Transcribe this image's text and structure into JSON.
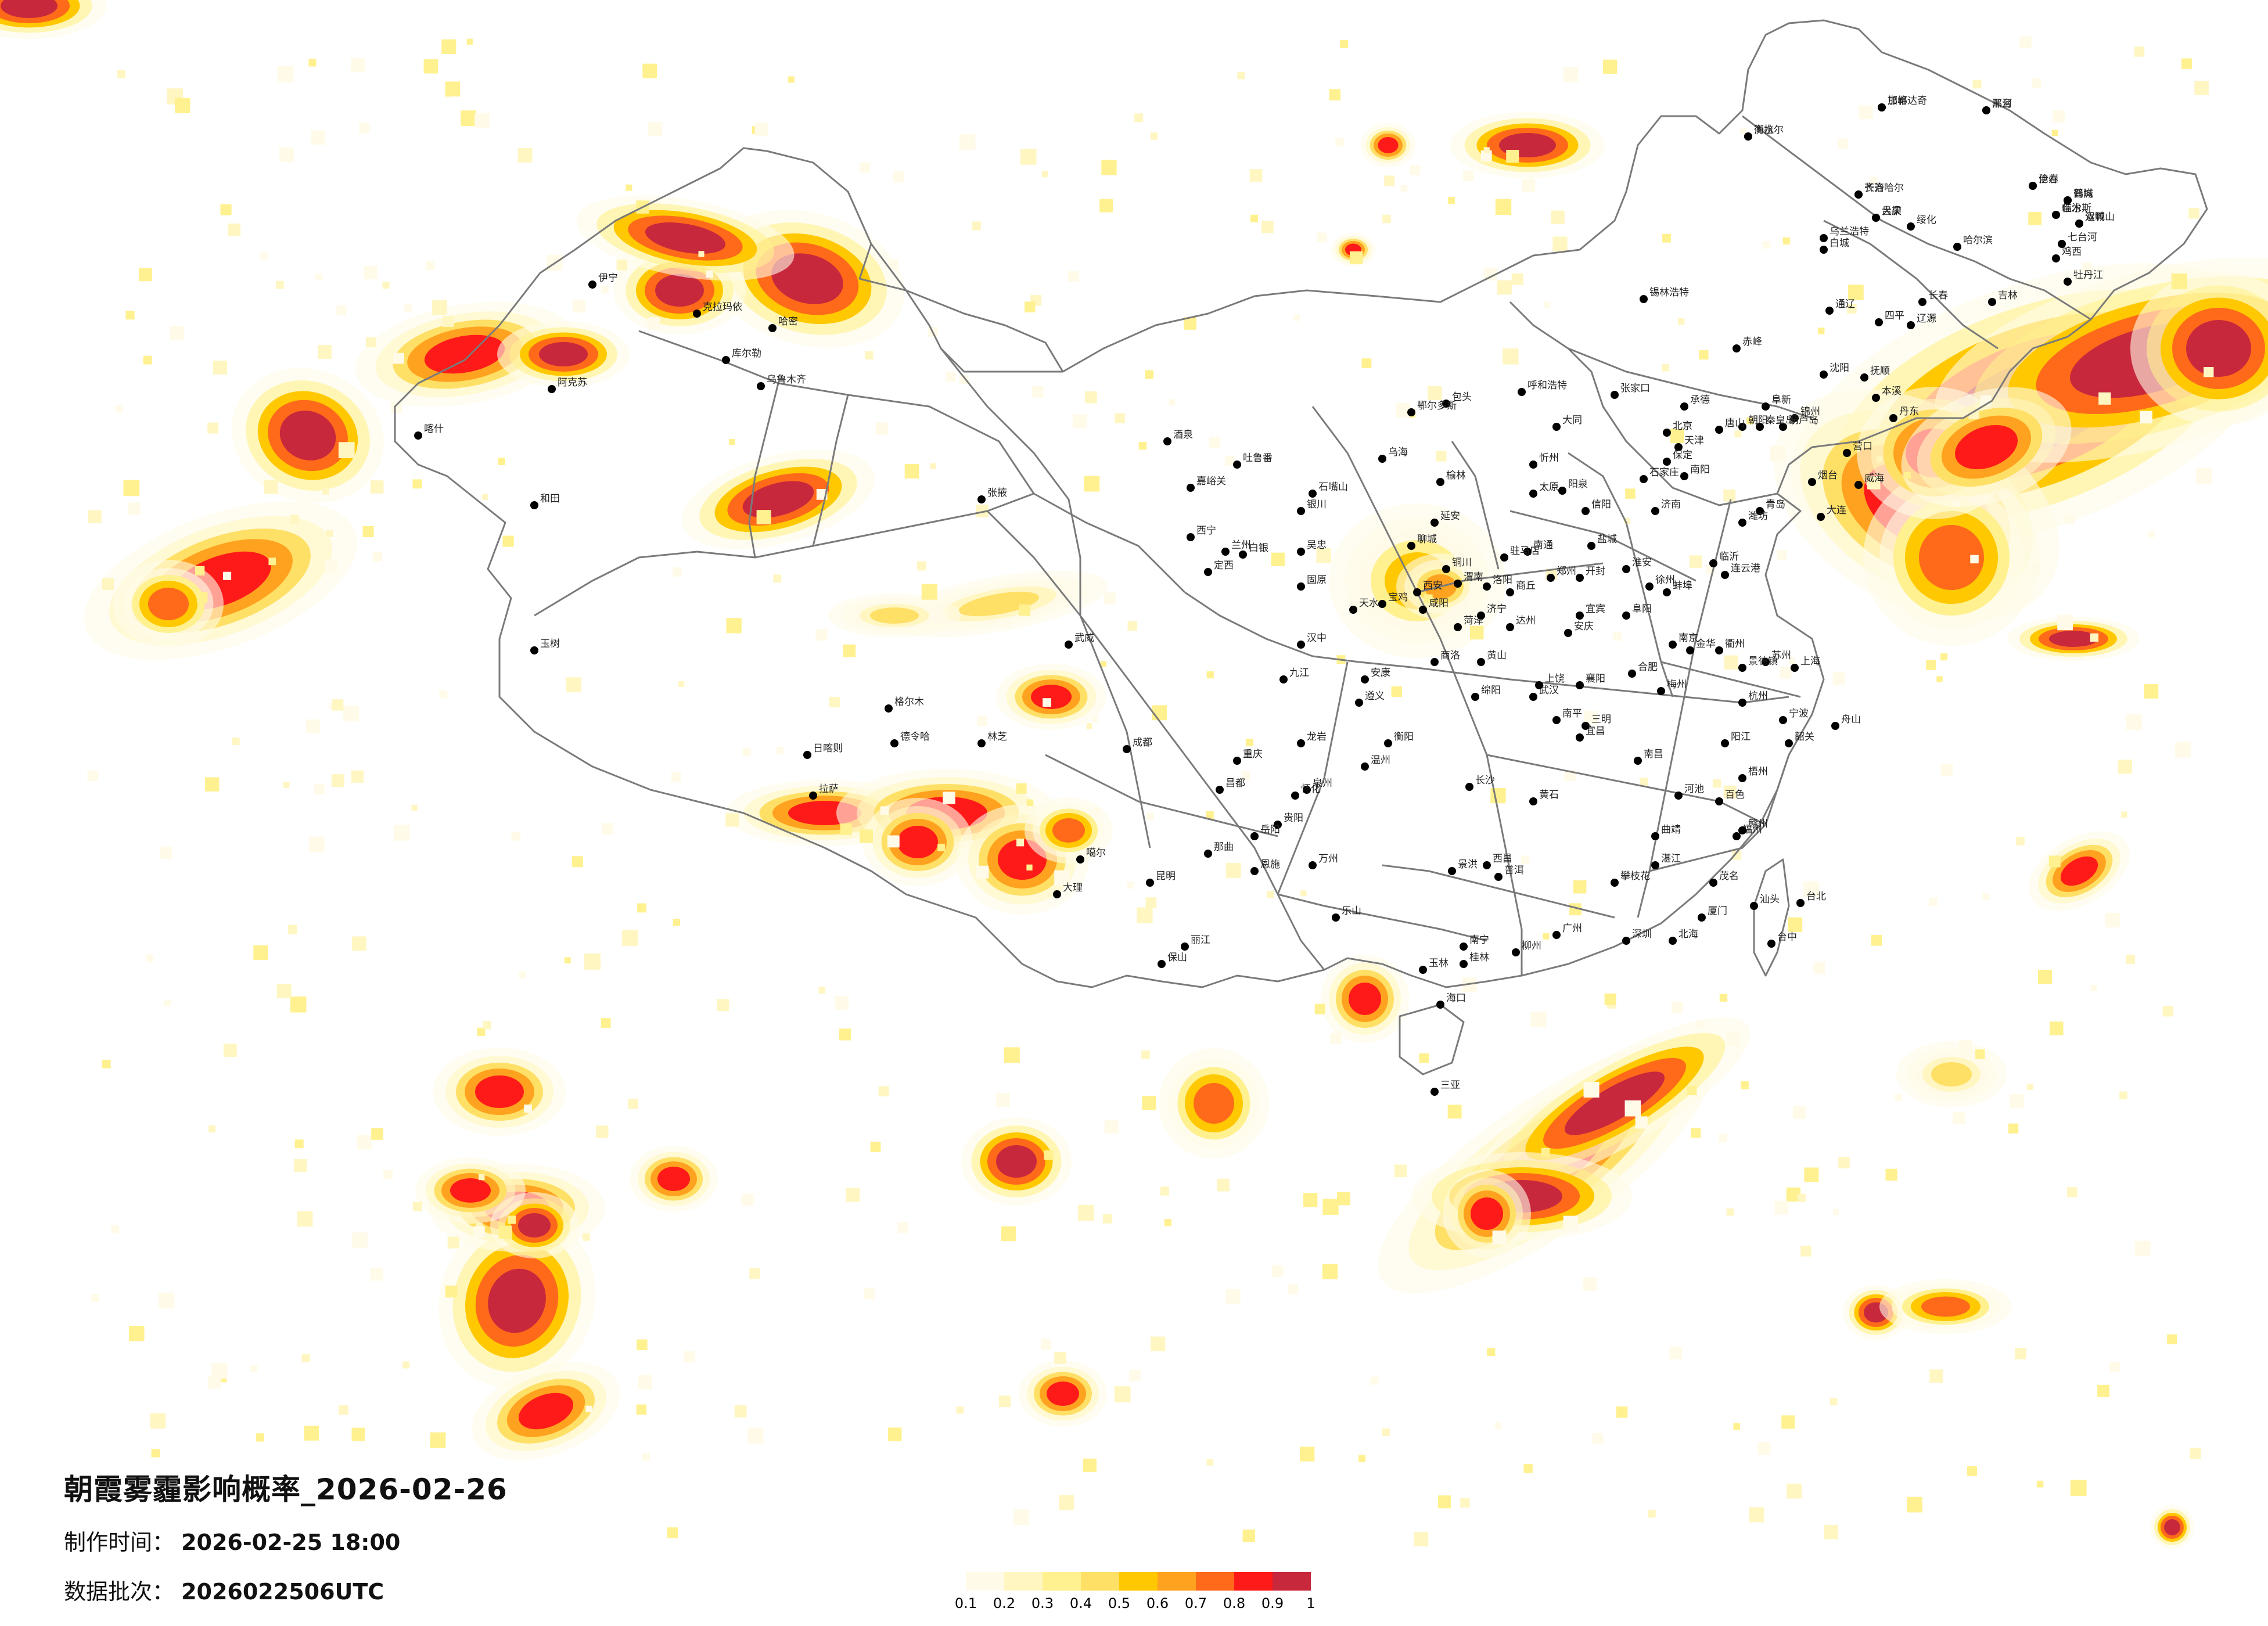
{
  "title": "朝霞雾霾影响概率_2026-02-26",
  "made_time_label": "制作时间：",
  "made_time_value": "2026-02-25 18:00",
  "batch_label": "数据批次：",
  "batch_value": "2026022506UTC",
  "legend": {
    "ticks": [
      "0.1",
      "0.2",
      "0.3",
      "0.4",
      "0.5",
      "0.6",
      "0.7",
      "0.8",
      "0.9",
      "1"
    ],
    "colors": [
      "#fffbe8",
      "#fff6c2",
      "#fff190",
      "#ffe066",
      "#ffc800",
      "#ffa21f",
      "#ff6a1a",
      "#ff1a1a",
      "#c8283c"
    ]
  },
  "colors": {
    "border": "#7a7a7a",
    "city_dot": "#000000"
  },
  "cities": [
    {
      "name": "加格达奇"
    },
    {
      "name": "黑河"
    },
    {
      "name": "海拉尔"
    },
    {
      "name": "伊春"
    },
    {
      "name": "齐齐哈尔"
    },
    {
      "name": "鹤岗"
    },
    {
      "name": "佳木斯"
    },
    {
      "name": "双鸭山"
    },
    {
      "name": "大庆"
    },
    {
      "name": "绥化"
    },
    {
      "name": "乌兰浩特"
    },
    {
      "name": "哈尔滨"
    },
    {
      "name": "七台河"
    },
    {
      "name": "鸡西"
    },
    {
      "name": "白城"
    },
    {
      "name": "牡丹江"
    },
    {
      "name": "长春"
    },
    {
      "name": "吉林"
    },
    {
      "name": "通辽"
    },
    {
      "name": "四平"
    },
    {
      "name": "辽源"
    },
    {
      "name": "锡林浩特"
    },
    {
      "name": "赤峰"
    },
    {
      "name": "沈阳"
    },
    {
      "name": "抚顺"
    },
    {
      "name": "本溪"
    },
    {
      "name": "丹东"
    },
    {
      "name": "大连"
    },
    {
      "name": "营口"
    },
    {
      "name": "锦州"
    },
    {
      "name": "葫芦岛"
    },
    {
      "name": "阜新"
    },
    {
      "name": "朝阳"
    },
    {
      "name": "承德"
    },
    {
      "name": "张家口"
    },
    {
      "name": "呼和浩特"
    },
    {
      "name": "包头"
    },
    {
      "name": "乌海"
    },
    {
      "name": "鄂尔多斯"
    },
    {
      "name": "北京"
    },
    {
      "name": "天津"
    },
    {
      "name": "唐山"
    },
    {
      "name": "秦皇岛"
    },
    {
      "name": "保定"
    },
    {
      "name": "石家庄"
    },
    {
      "name": "大同"
    },
    {
      "name": "忻州"
    },
    {
      "name": "太原"
    },
    {
      "name": "阳泉"
    },
    {
      "name": "榆林"
    },
    {
      "name": "延安"
    },
    {
      "name": "银川"
    },
    {
      "name": "石嘴山"
    },
    {
      "name": "吴忠"
    },
    {
      "name": "固原"
    },
    {
      "name": "兰州"
    },
    {
      "name": "西宁"
    },
    {
      "name": "白银"
    },
    {
      "name": "定西"
    },
    {
      "name": "天水"
    },
    {
      "name": "宝鸡"
    },
    {
      "name": "西安"
    },
    {
      "name": "咸阳"
    },
    {
      "name": "渭南"
    },
    {
      "name": "铜川"
    },
    {
      "name": "汉中"
    },
    {
      "name": "安康"
    },
    {
      "name": "商洛"
    },
    {
      "name": "郑州"
    },
    {
      "name": "洛阳"
    },
    {
      "name": "开封"
    },
    {
      "name": "济南"
    },
    {
      "name": "青岛"
    },
    {
      "name": "烟台"
    },
    {
      "name": "威海"
    },
    {
      "name": "潍坊"
    },
    {
      "name": "临沂"
    },
    {
      "name": "徐州"
    },
    {
      "name": "连云港"
    },
    {
      "name": "南京"
    },
    {
      "name": "苏州"
    },
    {
      "name": "上海"
    },
    {
      "name": "杭州"
    },
    {
      "name": "宁波"
    },
    {
      "name": "舟山"
    },
    {
      "name": "合肥"
    },
    {
      "name": "武汉"
    },
    {
      "name": "长沙"
    },
    {
      "name": "南昌"
    },
    {
      "name": "福州"
    },
    {
      "name": "厦门"
    },
    {
      "name": "台北"
    },
    {
      "name": "台中"
    },
    {
      "name": "广州"
    },
    {
      "name": "深圳"
    },
    {
      "name": "南宁"
    },
    {
      "name": "海口"
    },
    {
      "name": "三亚"
    },
    {
      "name": "贵阳"
    },
    {
      "name": "昆明"
    },
    {
      "name": "成都"
    },
    {
      "name": "重庆"
    },
    {
      "name": "拉萨"
    },
    {
      "name": "林芝"
    },
    {
      "name": "日喀则"
    },
    {
      "name": "格尔木"
    },
    {
      "name": "乌鲁木齐"
    },
    {
      "name": "克拉玛依"
    },
    {
      "name": "伊宁"
    },
    {
      "name": "阿克苏"
    },
    {
      "name": "喀什"
    },
    {
      "name": "和田"
    },
    {
      "name": "库尔勒"
    },
    {
      "name": "哈密"
    },
    {
      "name": "吐鲁番"
    },
    {
      "name": "嘉峪关"
    },
    {
      "name": "酒泉"
    },
    {
      "name": "张掖"
    },
    {
      "name": "武威"
    },
    {
      "name": "德令哈"
    },
    {
      "name": "玉树"
    },
    {
      "name": "昌都"
    },
    {
      "name": "那曲"
    },
    {
      "name": "噶尔"
    },
    {
      "name": "大理"
    },
    {
      "name": "丽江"
    },
    {
      "name": "保山"
    },
    {
      "name": "普洱"
    },
    {
      "name": "景洪"
    },
    {
      "name": "柳州"
    },
    {
      "name": "桂林"
    },
    {
      "name": "玉林"
    },
    {
      "name": "北海"
    },
    {
      "name": "湛江"
    },
    {
      "name": "茂名"
    },
    {
      "name": "汕头"
    },
    {
      "name": "赣州"
    },
    {
      "name": "龙岩"
    },
    {
      "name": "泉州"
    },
    {
      "name": "温州"
    },
    {
      "name": "遵义"
    },
    {
      "name": "宜宾"
    },
    {
      "name": "绵阳"
    },
    {
      "name": "达州"
    },
    {
      "name": "襄阳"
    },
    {
      "name": "宜昌"
    },
    {
      "name": "黄石"
    },
    {
      "name": "九江"
    },
    {
      "name": "岳阳"
    },
    {
      "name": "衡阳"
    },
    {
      "name": "怀化"
    },
    {
      "name": "恩施"
    },
    {
      "name": "万州"
    },
    {
      "name": "乐山"
    },
    {
      "name": "西昌"
    },
    {
      "name": "攀枝花"
    },
    {
      "name": "曲靖"
    },
    {
      "name": "百色"
    },
    {
      "name": "河池"
    },
    {
      "name": "梧州"
    },
    {
      "name": "阳江"
    },
    {
      "name": "韶关"
    },
    {
      "name": "梅州"
    },
    {
      "name": "三明"
    },
    {
      "name": "南平"
    },
    {
      "name": "金华"
    },
    {
      "name": "衢州"
    },
    {
      "name": "景德镇"
    },
    {
      "name": "上饶"
    },
    {
      "name": "黄山"
    },
    {
      "name": "安庆"
    },
    {
      "name": "阜阳"
    },
    {
      "name": "蚌埠"
    },
    {
      "name": "淮安"
    },
    {
      "name": "盐城"
    },
    {
      "name": "南通"
    },
    {
      "name": "信阳"
    },
    {
      "name": "南阳"
    },
    {
      "name": "驻马店"
    },
    {
      "name": "商丘"
    },
    {
      "name": "菏泽"
    },
    {
      "name": "济宁"
    },
    {
      "name": "聊城"
    },
    {
      "name": "邯郸"
    },
    {
      "name": "邢台"
    },
    {
      "name": "衡水"
    },
    {
      "name": "沧州"
    },
    {
      "name": "长治"
    },
    {
      "name": "晋城"
    },
    {
      "name": "临汾"
    },
    {
      "name": "运城"
    },
    {
      "name": "吕梁"
    }
  ]
}
